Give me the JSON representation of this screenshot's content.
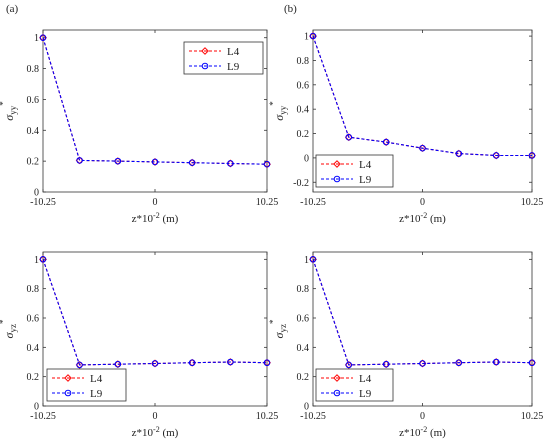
{
  "chart_data": [
    {
      "panel_label": "(a)",
      "type": "line",
      "xlabel": "z*10",
      "xlabel_sup": "-2",
      "xlabel_unit": " (m)",
      "ylabel_main": "σ",
      "ylabel_sub": "yy",
      "ylabel_sup": "*",
      "x_ticks": [
        -10.25,
        0,
        10.25
      ],
      "x_tick_labels": [
        "-10.25",
        "0",
        "10.25"
      ],
      "y_ticks": [
        0,
        0.2,
        0.4,
        0.6,
        0.8,
        1
      ],
      "y_tick_labels": [
        "0",
        "0.2",
        "0.4",
        "0.6",
        "0.8",
        "1"
      ],
      "xlim": [
        -10.25,
        10.25
      ],
      "ylim": [
        0,
        1.05
      ],
      "legend_position": "top-right",
      "series": [
        {
          "name": "L4",
          "color": "#ff0000",
          "marker": "diamond",
          "x": [
            -10.25,
            -6.9,
            -3.4,
            0,
            3.4,
            6.9,
            10.25
          ],
          "y": [
            1.0,
            0.205,
            0.2,
            0.195,
            0.19,
            0.185,
            0.18
          ]
        },
        {
          "name": "L9",
          "color": "#0000ff",
          "marker": "circle",
          "x": [
            -10.25,
            -6.9,
            -3.4,
            0,
            3.4,
            6.9,
            10.25
          ],
          "y": [
            1.0,
            0.205,
            0.2,
            0.195,
            0.19,
            0.185,
            0.18
          ]
        }
      ]
    },
    {
      "panel_label": "(b)",
      "type": "line",
      "xlabel": "z*10",
      "xlabel_sup": "-2",
      "xlabel_unit": " (m)",
      "ylabel_main": "σ",
      "ylabel_sub": "yy",
      "ylabel_sup": "*",
      "x_ticks": [
        -10.25,
        0,
        10.25
      ],
      "x_tick_labels": [
        "-10.25",
        "0",
        "10.25"
      ],
      "y_ticks": [
        -0.2,
        0,
        0.2,
        0.4,
        0.6,
        0.8,
        1
      ],
      "y_tick_labels": [
        "-0.2",
        "0",
        "0.2",
        "0.4",
        "0.6",
        "0.8",
        "1"
      ],
      "xlim": [
        -10.25,
        10.25
      ],
      "ylim": [
        -0.28,
        1.05
      ],
      "legend_position": "bottom-left",
      "series": [
        {
          "name": "L4",
          "color": "#ff0000",
          "marker": "diamond",
          "x": [
            -10.25,
            -6.9,
            -3.4,
            0,
            3.4,
            6.9,
            10.25
          ],
          "y": [
            1.0,
            0.17,
            0.13,
            0.08,
            0.035,
            0.02,
            0.02
          ]
        },
        {
          "name": "L9",
          "color": "#0000ff",
          "marker": "circle",
          "x": [
            -10.25,
            -6.9,
            -3.4,
            0,
            3.4,
            6.9,
            10.25
          ],
          "y": [
            1.0,
            0.17,
            0.13,
            0.08,
            0.035,
            0.02,
            0.02
          ]
        }
      ]
    },
    {
      "panel_label": "",
      "type": "line",
      "xlabel": "z*10",
      "xlabel_sup": "-2",
      "xlabel_unit": " (m)",
      "ylabel_main": "σ",
      "ylabel_sub": "yz",
      "ylabel_sup": "*",
      "x_ticks": [
        -10.25,
        0,
        10.25
      ],
      "x_tick_labels": [
        "-10.25",
        "0",
        "10.25"
      ],
      "y_ticks": [
        0,
        0.2,
        0.4,
        0.6,
        0.8,
        1
      ],
      "y_tick_labels": [
        "0",
        "0.2",
        "0.4",
        "0.6",
        "0.8",
        "1"
      ],
      "xlim": [
        -10.25,
        10.25
      ],
      "ylim": [
        0,
        1.05
      ],
      "legend_position": "bottom-left",
      "series": [
        {
          "name": "L4",
          "color": "#ff0000",
          "marker": "diamond",
          "x": [
            -10.25,
            -6.9,
            -3.4,
            0,
            3.4,
            6.9,
            10.25
          ],
          "y": [
            1.0,
            0.28,
            0.285,
            0.29,
            0.295,
            0.3,
            0.295
          ]
        },
        {
          "name": "L9",
          "color": "#0000ff",
          "marker": "circle",
          "x": [
            -10.25,
            -6.9,
            -3.4,
            0,
            3.4,
            6.9,
            10.25
          ],
          "y": [
            1.0,
            0.28,
            0.285,
            0.29,
            0.295,
            0.3,
            0.295
          ]
        }
      ]
    },
    {
      "panel_label": "",
      "type": "line",
      "xlabel": "z*10",
      "xlabel_sup": "-2",
      "xlabel_unit": " (m)",
      "ylabel_main": "σ",
      "ylabel_sub": "yz",
      "ylabel_sup": "*",
      "x_ticks": [
        -10.25,
        0,
        10.25
      ],
      "x_tick_labels": [
        "-10.25",
        "0",
        "10.25"
      ],
      "y_ticks": [
        0,
        0.2,
        0.4,
        0.6,
        0.8,
        1
      ],
      "y_tick_labels": [
        "0",
        "0.2",
        "0.4",
        "0.6",
        "0.8",
        "1"
      ],
      "xlim": [
        -10.25,
        10.25
      ],
      "ylim": [
        0,
        1.05
      ],
      "legend_position": "bottom-left",
      "series": [
        {
          "name": "L4",
          "color": "#ff0000",
          "marker": "diamond",
          "x": [
            -10.25,
            -6.9,
            -3.4,
            0,
            3.4,
            6.9,
            10.25
          ],
          "y": [
            1.0,
            0.28,
            0.285,
            0.29,
            0.295,
            0.3,
            0.295
          ]
        },
        {
          "name": "L9",
          "color": "#0000ff",
          "marker": "circle",
          "x": [
            -10.25,
            -6.9,
            -3.4,
            0,
            3.4,
            6.9,
            10.25
          ],
          "y": [
            1.0,
            0.28,
            0.285,
            0.29,
            0.295,
            0.3,
            0.295
          ]
        }
      ]
    }
  ]
}
